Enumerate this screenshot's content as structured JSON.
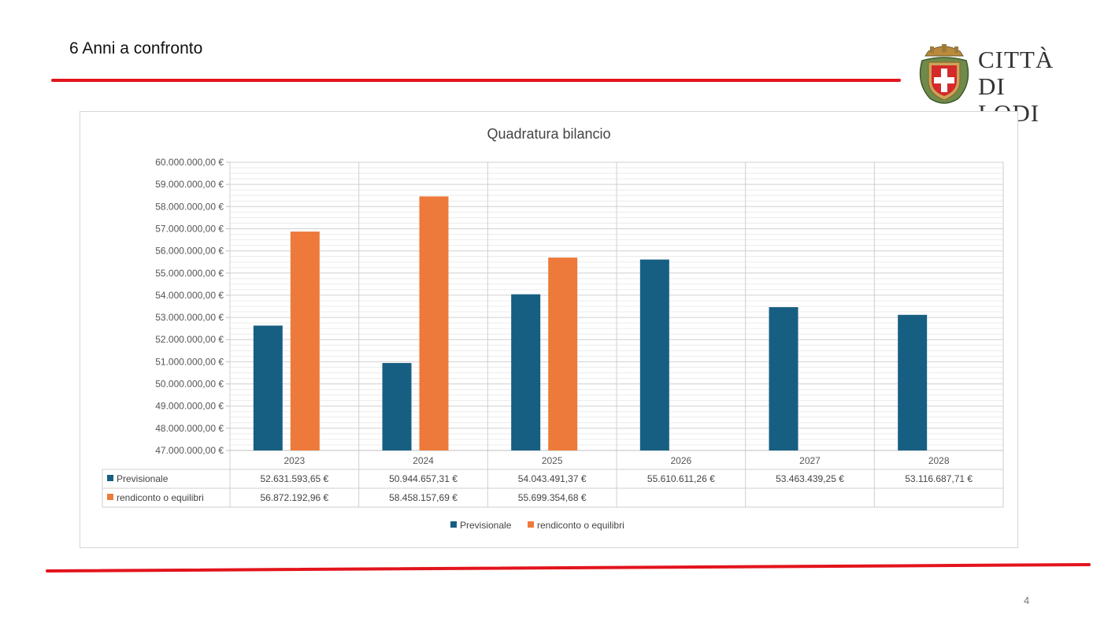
{
  "slide": {
    "title": "6 Anni a confronto",
    "page_number": "4",
    "accent_color": "#e3141c"
  },
  "logo": {
    "line1": "CITTÀ",
    "line2": "DI LODI"
  },
  "chart_data": {
    "type": "bar",
    "title": "Quadratura bilancio",
    "categories": [
      "2023",
      "2024",
      "2025",
      "2026",
      "2027",
      "2028"
    ],
    "series": [
      {
        "name": "Previsionale",
        "color": "#175f82",
        "values": [
          52631593.65,
          50944657.31,
          54043491.37,
          55610611.26,
          53463439.25,
          53116687.71
        ],
        "labels": [
          "52.631.593,65 €",
          "50.944.657,31 €",
          "54.043.491,37 €",
          "55.610.611,26 €",
          "53.463.439,25 €",
          "53.116.687,71 €"
        ]
      },
      {
        "name": "rendiconto o equilibri",
        "color": "#ed7a3a",
        "values": [
          56872192.96,
          58458157.69,
          55699354.68,
          null,
          null,
          null
        ],
        "labels": [
          "56.872.192,96 €",
          "58.458.157,69 €",
          "55.699.354,68 €",
          "",
          "",
          ""
        ]
      }
    ],
    "ylim": [
      47000000,
      60000000
    ],
    "yticks": [
      "47.000.000,00 €",
      "48.000.000,00 €",
      "49.000.000,00 €",
      "50.000.000,00 €",
      "51.000.000,00 €",
      "52.000.000,00 €",
      "53.000.000,00 €",
      "54.000.000,00 €",
      "55.000.000,00 €",
      "56.000.000,00 €",
      "57.000.000,00 €",
      "58.000.000,00 €",
      "59.000.000,00 €",
      "60.000.000,00 €"
    ],
    "xlabel": "",
    "ylabel": "",
    "grid": true,
    "data_table": true,
    "legend_position": "bottom"
  }
}
